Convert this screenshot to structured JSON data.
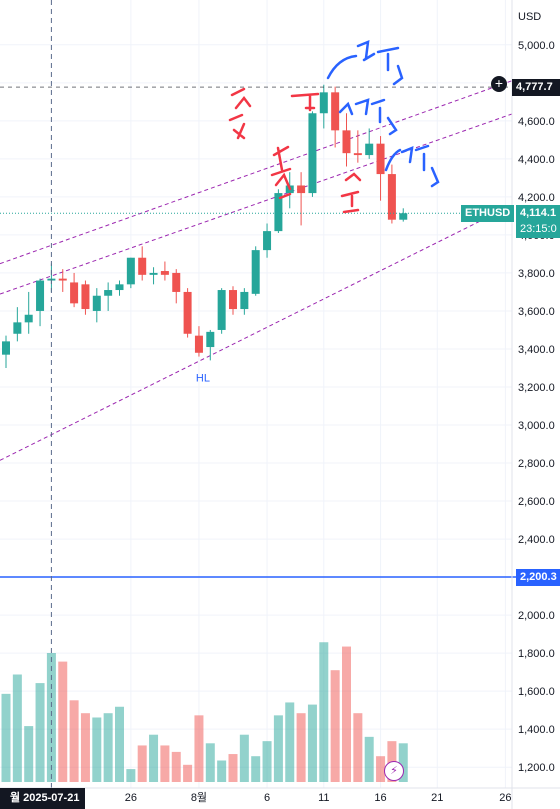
{
  "chart_data": {
    "type": "candlestick",
    "symbol": "ETHUSD",
    "currency_label": "USD",
    "ylim": [
      1080,
      5120
    ],
    "y_ticks": [
      1200,
      1400,
      1600,
      1800,
      2000,
      2200,
      2400,
      2600,
      2800,
      3000,
      3200,
      3400,
      3600,
      3800,
      4000,
      4200,
      4400,
      4600,
      4800,
      5000
    ],
    "y_tick_labels": [
      "1,200.0",
      "1,400.0",
      "1,600.0",
      "1,800.0",
      "2,000.0",
      "2,200.0",
      "2,400.0",
      "2,600.0",
      "2,800.0",
      "3,000.0",
      "3,200.0",
      "3,400.0",
      "3,600.0",
      "3,800.0",
      "4,000.0",
      "4,200.0",
      "4,400.0",
      "4,600.0",
      "4,800.0",
      "5,000.0"
    ],
    "x_ticks": [
      {
        "index": 11,
        "label": "26"
      },
      {
        "index": 17,
        "label": "8월"
      },
      {
        "index": 23,
        "label": "6"
      },
      {
        "index": 28,
        "label": "11"
      },
      {
        "index": 33,
        "label": "16"
      },
      {
        "index": 38,
        "label": "21"
      },
      {
        "index": 44,
        "label": "26"
      }
    ],
    "candles": [
      {
        "o": 3370,
        "h": 3470,
        "l": 3300,
        "c": 3440
      },
      {
        "o": 3480,
        "h": 3620,
        "l": 3440,
        "c": 3540
      },
      {
        "o": 3540,
        "h": 3700,
        "l": 3480,
        "c": 3580
      },
      {
        "o": 3600,
        "h": 3770,
        "l": 3520,
        "c": 3760
      },
      {
        "o": 3760,
        "h": 3850,
        "l": 3700,
        "c": 3770
      },
      {
        "o": 3770,
        "h": 3820,
        "l": 3700,
        "c": 3760
      },
      {
        "o": 3750,
        "h": 3800,
        "l": 3620,
        "c": 3640
      },
      {
        "o": 3740,
        "h": 3760,
        "l": 3580,
        "c": 3610
      },
      {
        "o": 3600,
        "h": 3720,
        "l": 3540,
        "c": 3680
      },
      {
        "o": 3680,
        "h": 3750,
        "l": 3600,
        "c": 3710
      },
      {
        "o": 3710,
        "h": 3760,
        "l": 3680,
        "c": 3740
      },
      {
        "o": 3740,
        "h": 3880,
        "l": 3720,
        "c": 3880
      },
      {
        "o": 3880,
        "h": 3940,
        "l": 3760,
        "c": 3790
      },
      {
        "o": 3790,
        "h": 3830,
        "l": 3740,
        "c": 3800
      },
      {
        "o": 3810,
        "h": 3860,
        "l": 3760,
        "c": 3790
      },
      {
        "o": 3800,
        "h": 3820,
        "l": 3640,
        "c": 3700
      },
      {
        "o": 3700,
        "h": 3720,
        "l": 3460,
        "c": 3480
      },
      {
        "o": 3470,
        "h": 3520,
        "l": 3360,
        "c": 3380
      },
      {
        "o": 3410,
        "h": 3500,
        "l": 3340,
        "c": 3490
      },
      {
        "o": 3500,
        "h": 3720,
        "l": 3480,
        "c": 3710
      },
      {
        "o": 3710,
        "h": 3730,
        "l": 3580,
        "c": 3610
      },
      {
        "o": 3610,
        "h": 3720,
        "l": 3580,
        "c": 3700
      },
      {
        "o": 3690,
        "h": 3940,
        "l": 3680,
        "c": 3920
      },
      {
        "o": 3920,
        "h": 4060,
        "l": 3880,
        "c": 4020
      },
      {
        "o": 4020,
        "h": 4240,
        "l": 4010,
        "c": 4220
      },
      {
        "o": 4220,
        "h": 4330,
        "l": 4140,
        "c": 4260
      },
      {
        "o": 4260,
        "h": 4330,
        "l": 4050,
        "c": 4220
      },
      {
        "o": 4220,
        "h": 4650,
        "l": 4200,
        "c": 4640
      },
      {
        "o": 4640,
        "h": 4790,
        "l": 4560,
        "c": 4750
      },
      {
        "o": 4750,
        "h": 4780,
        "l": 4460,
        "c": 4550
      },
      {
        "o": 4550,
        "h": 4640,
        "l": 4360,
        "c": 4430
      },
      {
        "o": 4430,
        "h": 4550,
        "l": 4380,
        "c": 4420
      },
      {
        "o": 4420,
        "h": 4560,
        "l": 4400,
        "c": 4480
      },
      {
        "o": 4480,
        "h": 4520,
        "l": 4180,
        "c": 4320
      },
      {
        "o": 4320,
        "h": 4370,
        "l": 4060,
        "c": 4080
      },
      {
        "o": 4080,
        "h": 4140,
        "l": 4070,
        "c": 4114
      }
    ],
    "first_candle_index": 0,
    "volumes": [
      1510,
      1600,
      1360,
      1560,
      1700,
      1660,
      1480,
      1420,
      1400,
      1420,
      1450,
      1160,
      1270,
      1320,
      1270,
      1240,
      1180,
      1410,
      1280,
      1200,
      1230,
      1320,
      1220,
      1290,
      1410,
      1470,
      1420,
      1460,
      1750,
      1620,
      1730,
      1420,
      1310,
      1220,
      1290,
      1280
    ],
    "volume_ylim": [
      1100,
      1900
    ],
    "current_price": 4114.1,
    "current_price_label": "4,114.1",
    "countdown_label": "23:15:0",
    "hline_price": 4777.7,
    "hline_price_label": "4,777.7",
    "blue_line_price": 2200.3,
    "blue_line_label": "2,200.3",
    "crosshair_date_label": "월 2025-07-21",
    "crosshair_index": 4,
    "channel": {
      "upper": {
        "i1": 0,
        "p1": 3860,
        "i2": 45,
        "p2": 4820
      },
      "middle": {
        "i1": 0,
        "p1": 3700,
        "i2": 40,
        "p2": 4540
      },
      "lower": {
        "i1": 0,
        "p1": 2830,
        "i2": 40,
        "p2": 4020
      }
    },
    "annotations": [
      {
        "text": "HL",
        "index": 17,
        "price": 3230,
        "color": "#2962ff"
      }
    ]
  }
}
